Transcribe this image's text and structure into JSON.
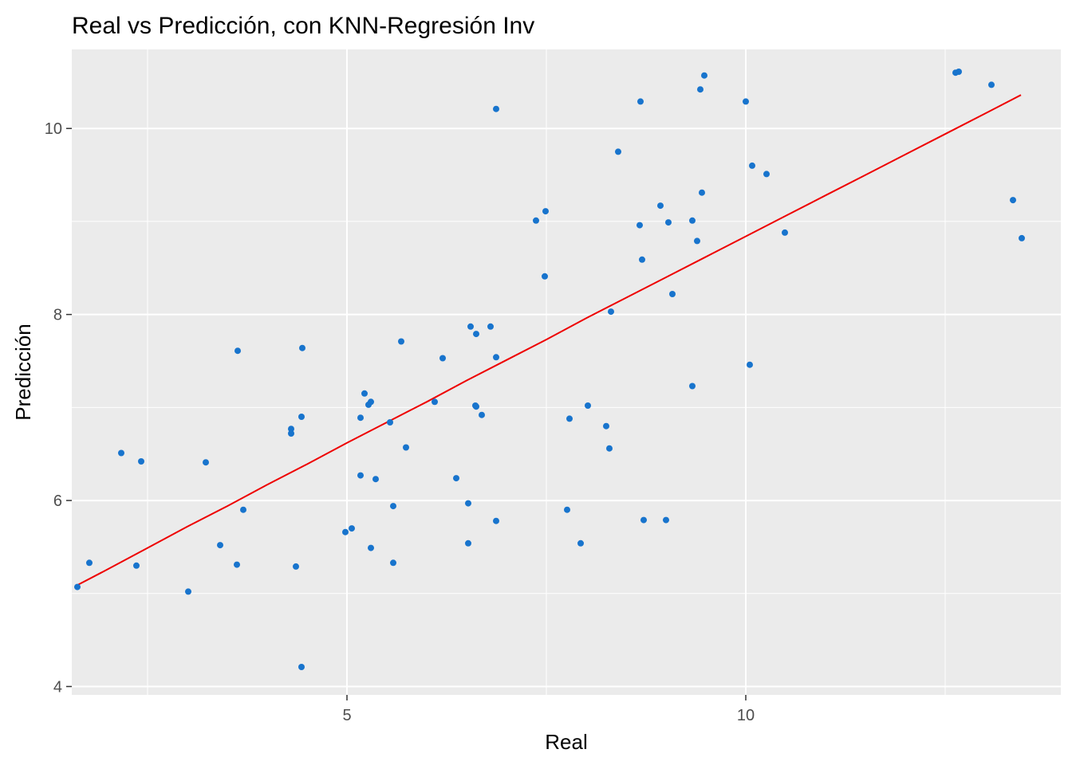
{
  "chart_data": {
    "type": "scatter",
    "title": "Real vs Predicción, con KNN-Regresión Inv",
    "xlabel": "Real",
    "ylabel": "Predicción",
    "xlim": [
      1.55,
      13.95
    ],
    "ylim": [
      3.91,
      10.85
    ],
    "xticks": [
      5,
      10
    ],
    "xticklabels": [
      "5",
      "10"
    ],
    "xminor": [
      2.5,
      7.5,
      12.5
    ],
    "yticks": [
      4,
      6,
      8,
      10
    ],
    "yticklabels": [
      "4",
      "6",
      "8",
      "10"
    ],
    "yminor": [
      5,
      7,
      9
    ],
    "grid": true,
    "colors": {
      "panel": "#ebebeb",
      "grid": "#ffffff",
      "points": "#1874cd",
      "fit_line": "#ee0000"
    },
    "series": [
      {
        "kind": "points",
        "points": [
          [
            1.62,
            5.07
          ],
          [
            1.77,
            5.33
          ],
          [
            2.17,
            6.51
          ],
          [
            2.36,
            5.3
          ],
          [
            2.42,
            6.42
          ],
          [
            3.01,
            5.02
          ],
          [
            3.23,
            6.41
          ],
          [
            3.41,
            5.52
          ],
          [
            3.62,
            5.31
          ],
          [
            3.63,
            7.61
          ],
          [
            3.7,
            5.9
          ],
          [
            4.3,
            6.77
          ],
          [
            4.3,
            6.72
          ],
          [
            4.36,
            5.29
          ],
          [
            4.43,
            6.9
          ],
          [
            4.44,
            7.64
          ],
          [
            4.43,
            4.21
          ],
          [
            4.98,
            5.66
          ],
          [
            5.06,
            5.7
          ],
          [
            5.17,
            6.27
          ],
          [
            5.17,
            6.89
          ],
          [
            5.22,
            7.15
          ],
          [
            5.27,
            7.03
          ],
          [
            5.3,
            7.06
          ],
          [
            5.3,
            5.49
          ],
          [
            5.36,
            6.23
          ],
          [
            5.54,
            6.84
          ],
          [
            5.58,
            5.33
          ],
          [
            5.58,
            5.94
          ],
          [
            5.68,
            7.71
          ],
          [
            5.74,
            6.57
          ],
          [
            6.1,
            7.06
          ],
          [
            6.2,
            7.53
          ],
          [
            6.37,
            6.24
          ],
          [
            6.52,
            5.97
          ],
          [
            6.52,
            5.54
          ],
          [
            6.55,
            7.87
          ],
          [
            6.61,
            7.02
          ],
          [
            6.62,
            7.01
          ],
          [
            6.62,
            7.79
          ],
          [
            6.69,
            6.92
          ],
          [
            6.8,
            7.87
          ],
          [
            6.87,
            5.78
          ],
          [
            6.87,
            7.54
          ],
          [
            6.87,
            10.21
          ],
          [
            7.37,
            9.01
          ],
          [
            7.48,
            8.41
          ],
          [
            7.49,
            9.11
          ],
          [
            7.76,
            5.9
          ],
          [
            7.79,
            6.88
          ],
          [
            7.93,
            5.54
          ],
          [
            8.02,
            7.02
          ],
          [
            8.25,
            6.8
          ],
          [
            8.29,
            6.56
          ],
          [
            8.31,
            8.03
          ],
          [
            8.4,
            9.75
          ],
          [
            8.67,
            8.96
          ],
          [
            8.68,
            10.29
          ],
          [
            8.7,
            8.59
          ],
          [
            8.72,
            5.79
          ],
          [
            8.93,
            9.17
          ],
          [
            9.0,
            5.79
          ],
          [
            9.03,
            8.99
          ],
          [
            9.08,
            8.22
          ],
          [
            9.33,
            7.23
          ],
          [
            9.33,
            9.01
          ],
          [
            9.39,
            8.79
          ],
          [
            9.43,
            10.42
          ],
          [
            9.45,
            9.31
          ],
          [
            9.48,
            10.57
          ],
          [
            10.0,
            10.29
          ],
          [
            10.05,
            7.46
          ],
          [
            10.08,
            9.6
          ],
          [
            10.26,
            9.51
          ],
          [
            10.49,
            8.88
          ],
          [
            12.63,
            10.6
          ],
          [
            12.67,
            10.61
          ],
          [
            13.08,
            10.47
          ],
          [
            13.35,
            9.23
          ],
          [
            13.46,
            8.82
          ]
        ]
      },
      {
        "kind": "fit-line",
        "points": [
          [
            1.62,
            5.09
          ],
          [
            2.0,
            5.26
          ],
          [
            2.5,
            5.49
          ],
          [
            3.0,
            5.72
          ],
          [
            3.5,
            5.94
          ],
          [
            4.0,
            6.17
          ],
          [
            4.5,
            6.39
          ],
          [
            5.0,
            6.62
          ],
          [
            5.5,
            6.84
          ],
          [
            6.0,
            7.06
          ],
          [
            6.5,
            7.29
          ],
          [
            7.0,
            7.51
          ],
          [
            7.5,
            7.73
          ],
          [
            8.0,
            7.96
          ],
          [
            8.5,
            8.18
          ],
          [
            9.0,
            8.4
          ],
          [
            9.5,
            8.62
          ],
          [
            10.0,
            8.84
          ],
          [
            10.5,
            9.06
          ],
          [
            11.0,
            9.28
          ],
          [
            11.5,
            9.5
          ],
          [
            12.0,
            9.72
          ],
          [
            12.5,
            9.94
          ],
          [
            13.0,
            10.16
          ],
          [
            13.45,
            10.36
          ]
        ]
      }
    ]
  }
}
